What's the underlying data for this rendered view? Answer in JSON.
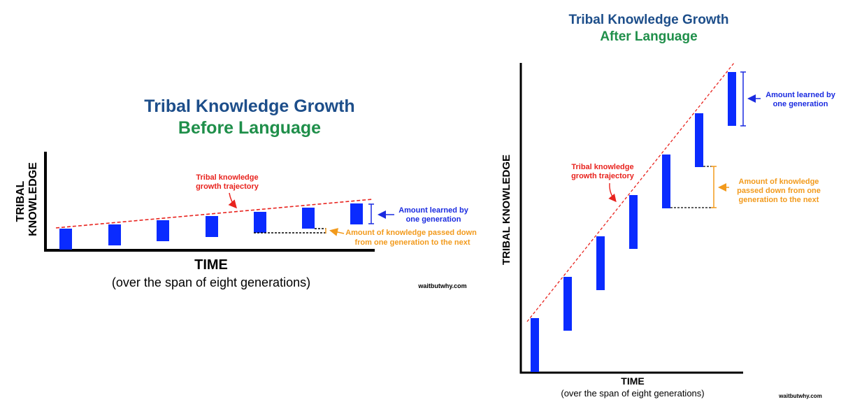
{
  "colors": {
    "bar": "#0a2bff",
    "trajectory": "#e8231e",
    "blue_annotation": "#1a2be0",
    "orange_annotation": "#f29a1c",
    "title_blue": "#1d4e8a",
    "title_green": "#1f8f4a"
  },
  "left_panel": {
    "title": "Tribal Knowledge Growth",
    "subtitle": "Before Language",
    "y_label_line1": "TRIBAL",
    "y_label_line2": "KNOWLEDGE",
    "x_label": "TIME",
    "x_sublabel": "(over the span of eight generations)",
    "trajectory_label_line1": "Tribal knowledge",
    "trajectory_label_line2": "growth trajectory",
    "learned_label_line1": "Amount learned by",
    "learned_label_line2": "one generation",
    "passed_label_line1": "Amount of knowledge passed down",
    "passed_label_line2": "from one generation to the next",
    "credit": "waitbutwhy.com"
  },
  "right_panel": {
    "title": "Tribal Knowledge Growth",
    "subtitle": "After Language",
    "y_label": "TRIBAL KNOWLEDGE",
    "x_label": "TIME",
    "x_sublabel": "(over the span of eight generations)",
    "trajectory_label_line1": "Tribal knowledge",
    "trajectory_label_line2": "growth trajectory",
    "learned_label_line1": "Amount learned by",
    "learned_label_line2": "one generation",
    "passed_label_line1": "Amount of knowledge",
    "passed_label_line2": "passed down from one",
    "passed_label_line3": "generation to the next",
    "credit": "waitbutwhy.com"
  }
}
